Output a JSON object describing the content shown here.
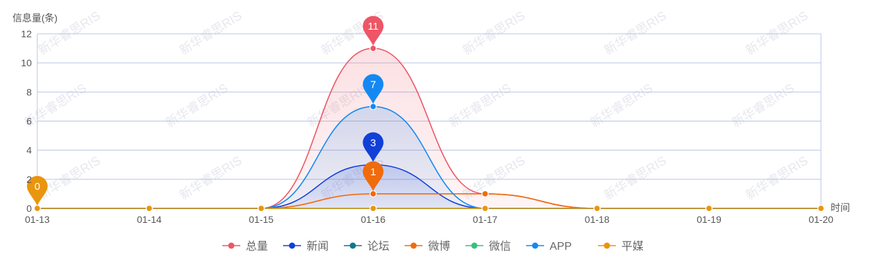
{
  "chart_data": {
    "type": "line",
    "ylabel": "信息量(条)",
    "xlabel": "时间",
    "ylim": [
      0,
      12
    ],
    "yticks": [
      0,
      2,
      4,
      6,
      8,
      10,
      12
    ],
    "categories": [
      "01-13",
      "01-14",
      "01-15",
      "01-16",
      "01-17",
      "01-18",
      "01-19",
      "01-20"
    ],
    "grid": true,
    "legend_position": "bottom",
    "smooth": true,
    "series": [
      {
        "name": "总量",
        "color": "#ee5565",
        "values": [
          0,
          0,
          0,
          11,
          1,
          0,
          0,
          0
        ],
        "area": true,
        "peak_label": "11"
      },
      {
        "name": "新闻",
        "color": "#1040d8",
        "values": [
          0,
          0,
          0,
          3,
          0,
          0,
          0,
          0
        ],
        "area": true,
        "peak_label": "3"
      },
      {
        "name": "论坛",
        "color": "#12778a",
        "values": [
          0,
          0,
          0,
          0,
          0,
          0,
          0,
          0
        ]
      },
      {
        "name": "微博",
        "color": "#f06b0c",
        "values": [
          0,
          0,
          0,
          1,
          1,
          0,
          0,
          0
        ],
        "peak_label": "1"
      },
      {
        "name": "微信",
        "color": "#3bbf7b",
        "values": [
          0,
          0,
          0,
          0,
          0,
          0,
          0,
          0
        ]
      },
      {
        "name": "APP",
        "color": "#1488f2",
        "values": [
          0,
          0,
          0,
          7,
          0,
          0,
          0,
          0
        ],
        "area": true,
        "peak_label": "7"
      },
      {
        "name": "平媒",
        "color": "#e9950e",
        "values": [
          0,
          0,
          0,
          0,
          0,
          0,
          0,
          0
        ],
        "first_label": "0"
      }
    ],
    "watermark_text": "新华睿思RIS"
  }
}
